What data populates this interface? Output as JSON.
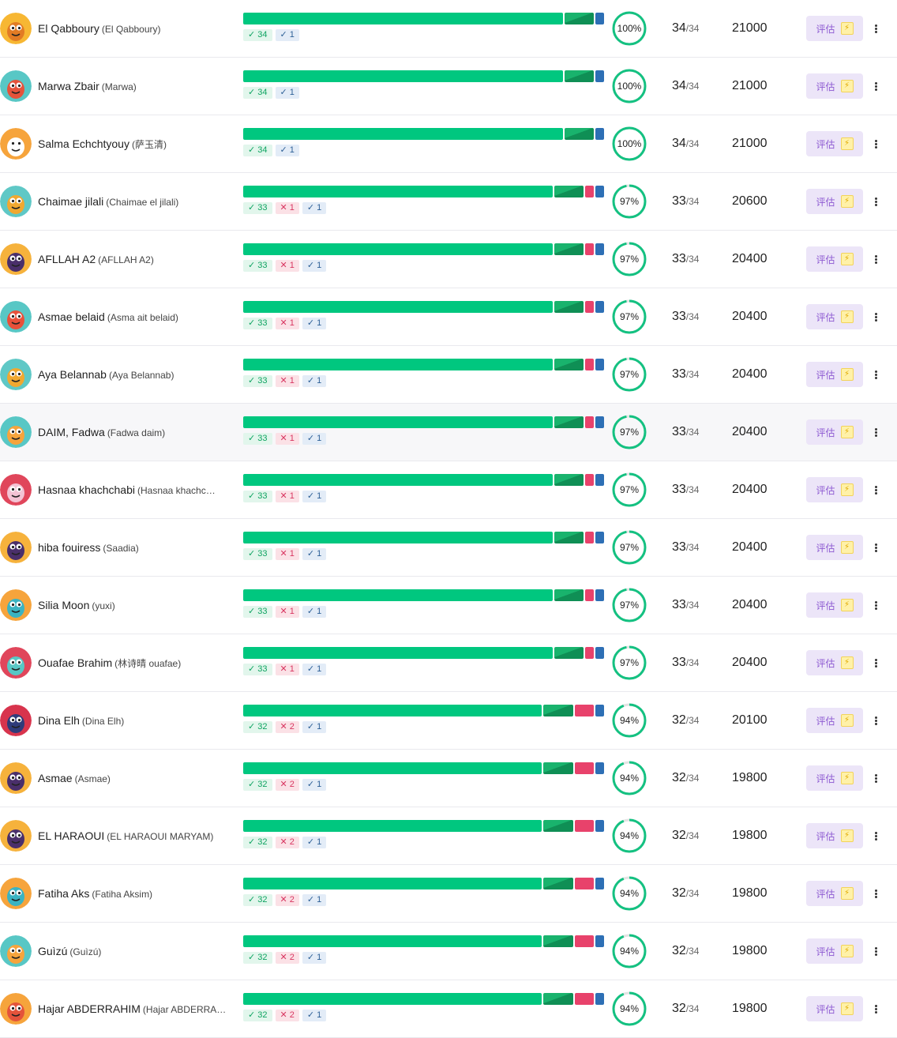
{
  "total_questions": 34,
  "eval_label": "评估",
  "colors": {
    "correct": "#00c77f",
    "correct_dark": "#0f8f55",
    "wrong": "#e8426b",
    "partial": "#2d6fb5",
    "ring": "#14c181",
    "ring_track": "#e3e3e3",
    "eval_bg": "#ece5f8",
    "eval_text": "#8e5bd2"
  },
  "students": [
    {
      "name": "El Qabboury",
      "nickname": "(El Qabboury)",
      "correct": 34,
      "wrong": 0,
      "partial": 1,
      "accuracy": "100%",
      "accuracy_value": 1.0,
      "score": "34",
      "total": "/34",
      "points": "21000",
      "avatar": "monster-yellow-icon",
      "avatar_bg": "#f7b733",
      "avatar_fg": "#e27b24"
    },
    {
      "name": "Marwa Zbair",
      "nickname": "(Marwa)",
      "correct": 34,
      "wrong": 0,
      "partial": 1,
      "accuracy": "100%",
      "accuracy_value": 1.0,
      "score": "34",
      "total": "/34",
      "points": "21000",
      "avatar": "monster-teal-icon",
      "avatar_bg": "#58c7c5",
      "avatar_fg": "#e4533b"
    },
    {
      "name": "Salma Echchtyouy",
      "nickname": "(萨玉清)",
      "correct": 34,
      "wrong": 0,
      "partial": 1,
      "accuracy": "100%",
      "accuracy_value": 1.0,
      "score": "34",
      "total": "/34",
      "points": "21000",
      "avatar": "monster-orange-icon",
      "avatar_bg": "#f6a43c",
      "avatar_fg": "#ffffff"
    },
    {
      "name": "Chaimae jilali",
      "nickname": "(Chaimae el jilali)",
      "correct": 33,
      "wrong": 1,
      "partial": 1,
      "accuracy": "97%",
      "accuracy_value": 0.97,
      "score": "33",
      "total": "/34",
      "points": "20600",
      "avatar": "monster-cyan-icon",
      "avatar_bg": "#5fc8c6",
      "avatar_fg": "#f0a830"
    },
    {
      "name": "AFLLAH A2",
      "nickname": "(AFLLAH A2)",
      "correct": 33,
      "wrong": 1,
      "partial": 1,
      "accuracy": "97%",
      "accuracy_value": 0.97,
      "score": "33",
      "total": "/34",
      "points": "20400",
      "avatar": "monster-purple-icon",
      "avatar_bg": "#f6b23c",
      "avatar_fg": "#4a2f6b"
    },
    {
      "name": "Asmae belaid",
      "nickname": "(Asma ait belaid)",
      "correct": 33,
      "wrong": 1,
      "partial": 1,
      "accuracy": "97%",
      "accuracy_value": 0.97,
      "score": "33",
      "total": "/34",
      "points": "20400",
      "avatar": "monster-red-icon",
      "avatar_bg": "#58c7c5",
      "avatar_fg": "#e8503a"
    },
    {
      "name": "Aya Belannab",
      "nickname": "(Aya Belannab)",
      "correct": 33,
      "wrong": 1,
      "partial": 1,
      "accuracy": "97%",
      "accuracy_value": 0.97,
      "score": "33",
      "total": "/34",
      "points": "20400",
      "avatar": "monster-cyan-icon",
      "avatar_bg": "#5fc8c6",
      "avatar_fg": "#f0a830"
    },
    {
      "name": "DAIM, Fadwa",
      "nickname": "(Fadwa daim)",
      "correct": 33,
      "wrong": 1,
      "partial": 1,
      "accuracy": "97%",
      "accuracy_value": 0.97,
      "score": "33",
      "total": "/34",
      "points": "20400",
      "avatar": "monster-bulb-icon",
      "avatar_bg": "#58c7c5",
      "avatar_fg": "#f6a43c"
    },
    {
      "name": "Hasnaa khachchabi",
      "nickname": "(Hasnaa khachc…",
      "correct": 33,
      "wrong": 1,
      "partial": 1,
      "accuracy": "97%",
      "accuracy_value": 0.97,
      "score": "33",
      "total": "/34",
      "points": "20400",
      "avatar": "monster-pink-icon",
      "avatar_bg": "#e0465b",
      "avatar_fg": "#f3c3d4"
    },
    {
      "name": "hiba fouiress",
      "nickname": "(Saadia)",
      "correct": 33,
      "wrong": 1,
      "partial": 1,
      "accuracy": "97%",
      "accuracy_value": 0.97,
      "score": "33",
      "total": "/34",
      "points": "20400",
      "avatar": "monster-purple-icon",
      "avatar_bg": "#f6b23c",
      "avatar_fg": "#4a2f6b"
    },
    {
      "name": "Silia Moon",
      "nickname": "(yuxi)",
      "correct": 33,
      "wrong": 1,
      "partial": 1,
      "accuracy": "97%",
      "accuracy_value": 0.97,
      "score": "33",
      "total": "/34",
      "points": "20400",
      "avatar": "monster-dino-icon",
      "avatar_bg": "#f6a43c",
      "avatar_fg": "#3bb3c2"
    },
    {
      "name": "Ouafae Brahim",
      "nickname": "(林诗晴 ouafae)",
      "correct": 33,
      "wrong": 1,
      "partial": 1,
      "accuracy": "97%",
      "accuracy_value": 0.97,
      "score": "33",
      "total": "/34",
      "points": "20400",
      "avatar": "monster-red-icon",
      "avatar_bg": "#e0465b",
      "avatar_fg": "#58c7c5"
    },
    {
      "name": "Dina Elh",
      "nickname": "(Dina Elh)",
      "correct": 32,
      "wrong": 2,
      "partial": 1,
      "accuracy": "94%",
      "accuracy_value": 0.94,
      "score": "32",
      "total": "/34",
      "points": "20100",
      "avatar": "monster-wave-icon",
      "avatar_bg": "#d8344d",
      "avatar_fg": "#2f3b7a"
    },
    {
      "name": "Asmae",
      "nickname": "(Asmae)",
      "correct": 32,
      "wrong": 2,
      "partial": 1,
      "accuracy": "94%",
      "accuracy_value": 0.94,
      "score": "32",
      "total": "/34",
      "points": "19800",
      "avatar": "monster-purple-icon",
      "avatar_bg": "#f6b23c",
      "avatar_fg": "#4a2f6b"
    },
    {
      "name": "EL HARAOUI",
      "nickname": "(EL HARAOUI MARYAM)",
      "correct": 32,
      "wrong": 2,
      "partial": 1,
      "accuracy": "94%",
      "accuracy_value": 0.94,
      "score": "32",
      "total": "/34",
      "points": "19800",
      "avatar": "monster-purple-icon",
      "avatar_bg": "#f6b23c",
      "avatar_fg": "#4a2f6b"
    },
    {
      "name": "Fatiha Aks",
      "nickname": "(Fatiha Aksim)",
      "correct": 32,
      "wrong": 2,
      "partial": 1,
      "accuracy": "94%",
      "accuracy_value": 0.94,
      "score": "32",
      "total": "/34",
      "points": "19800",
      "avatar": "monster-dino-icon",
      "avatar_bg": "#f6a43c",
      "avatar_fg": "#3bb3c2"
    },
    {
      "name": "Guìzú",
      "nickname": "(Guìzú)",
      "correct": 32,
      "wrong": 2,
      "partial": 1,
      "accuracy": "94%",
      "accuracy_value": 0.94,
      "score": "32",
      "total": "/34",
      "points": "19800",
      "avatar": "monster-yellow-icon",
      "avatar_bg": "#58c7c5",
      "avatar_fg": "#f6a43c"
    },
    {
      "name": "Hajar ABDERRAHIM",
      "nickname": "(Hajar ABDERRA…",
      "correct": 32,
      "wrong": 2,
      "partial": 1,
      "accuracy": "94%",
      "accuracy_value": 0.94,
      "score": "32",
      "total": "/34",
      "points": "19800",
      "avatar": "monster-orange-icon",
      "avatar_bg": "#f6a43c",
      "avatar_fg": "#e4533b"
    }
  ]
}
